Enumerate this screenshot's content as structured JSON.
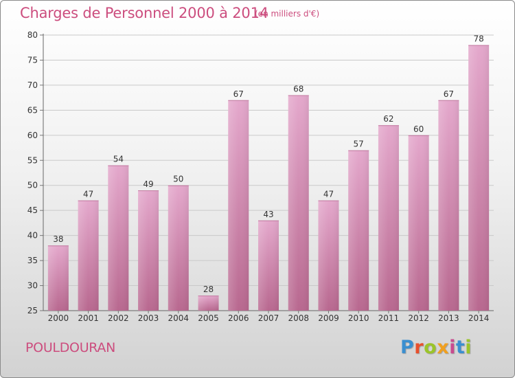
{
  "title": "Charges de Personnel 2000 à 2014",
  "subtitle": "(en milliers d'€)",
  "commune": "POULDOURAN",
  "logo": {
    "letters": [
      "P",
      "r",
      "o",
      "x",
      "i",
      "t",
      "i"
    ],
    "colors": [
      "#3a8fd0",
      "#e8502c",
      "#9bc42a",
      "#f0a020",
      "#c94b8f",
      "#3a8fd0",
      "#9bc42a"
    ]
  },
  "colors": {
    "bar_top": "#e4a8cc",
    "bar_bottom": "#b8688f",
    "title": "#cc4d7e"
  },
  "chart_data": {
    "type": "bar",
    "title": "Charges de Personnel 2000 à 2014",
    "subtitle": "(en milliers d'€)",
    "categories": [
      "2000",
      "2001",
      "2002",
      "2003",
      "2004",
      "2005",
      "2006",
      "2007",
      "2008",
      "2009",
      "2010",
      "2011",
      "2012",
      "2013",
      "2014"
    ],
    "values": [
      38,
      47,
      54,
      49,
      50,
      28,
      67,
      43,
      68,
      47,
      57,
      62,
      60,
      67,
      78
    ],
    "ylim": [
      25,
      80
    ],
    "yticks": [
      25,
      30,
      35,
      40,
      45,
      50,
      55,
      60,
      65,
      70,
      75,
      80
    ],
    "grid": true,
    "legend": "none"
  }
}
